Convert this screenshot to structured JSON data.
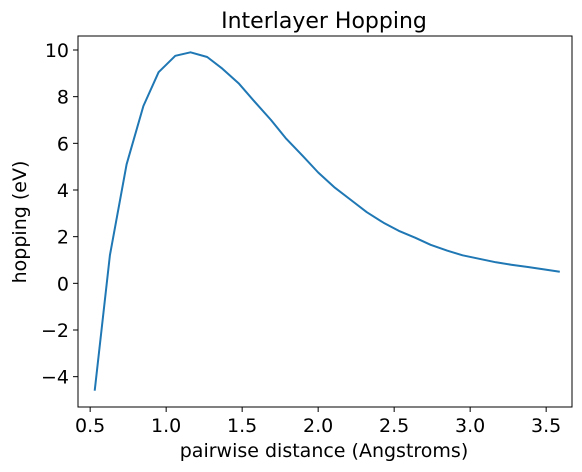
{
  "chart_data": {
    "type": "line",
    "title": "Interlayer Hopping",
    "xlabel": "pairwise distance (Angstroms)",
    "ylabel": "hopping (eV)",
    "xlim": [
      0.42,
      3.67
    ],
    "ylim": [
      -5.3,
      10.6
    ],
    "xticks": [
      0.5,
      1.0,
      1.5,
      2.0,
      2.5,
      3.0,
      3.5
    ],
    "xtick_labels": [
      "0.5",
      "1.0",
      "1.5",
      "2.0",
      "2.5",
      "3.0",
      "3.5"
    ],
    "yticks": [
      -4,
      -2,
      0,
      2,
      4,
      6,
      8,
      10
    ],
    "ytick_labels": [
      "−4",
      "−2",
      "0",
      "2",
      "4",
      "6",
      "8",
      "10"
    ],
    "grid": false,
    "series": [
      {
        "color": "#1f77b4",
        "x": [
          0.53,
          0.63,
          0.74,
          0.85,
          0.95,
          1.06,
          1.16,
          1.27,
          1.37,
          1.48,
          1.58,
          1.69,
          1.79,
          1.9,
          2.0,
          2.11,
          2.22,
          2.32,
          2.43,
          2.53,
          2.64,
          2.74,
          2.85,
          2.95,
          3.06,
          3.17,
          3.27,
          3.38,
          3.48,
          3.59
        ],
        "y": [
          -4.6,
          1.2,
          5.1,
          7.6,
          9.05,
          9.75,
          9.9,
          9.7,
          9.2,
          8.55,
          7.8,
          7.0,
          6.2,
          5.45,
          4.75,
          4.1,
          3.55,
          3.05,
          2.6,
          2.25,
          1.95,
          1.65,
          1.4,
          1.2,
          1.05,
          0.9,
          0.8,
          0.7,
          0.6,
          0.5
        ]
      }
    ]
  }
}
